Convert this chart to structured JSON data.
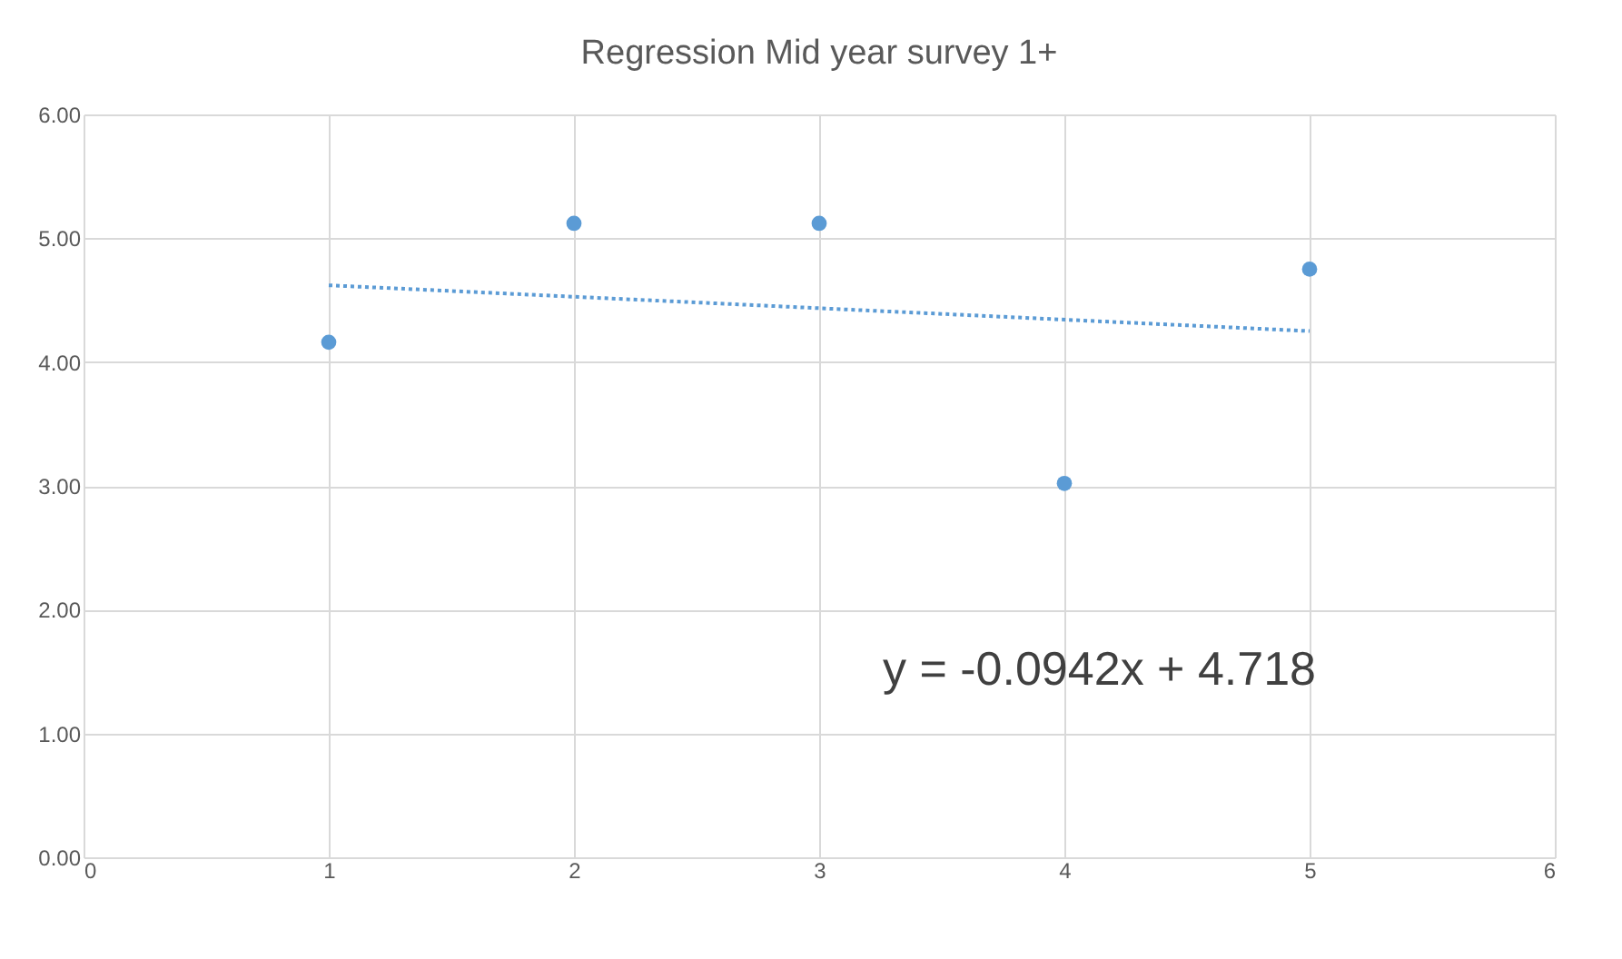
{
  "chart_data": {
    "type": "scatter",
    "title": "Regression Mid year survey 1+",
    "x": [
      1,
      2,
      3,
      4,
      5
    ],
    "series": [
      {
        "color": "#5b9bd5",
        "marker": "circle",
        "values": [
          4.16,
          5.12,
          5.12,
          3.02,
          4.75
        ]
      },
      {
        "type": "line",
        "color": "#5b9bd5",
        "line_style": "dotted",
        "marker": "none",
        "x": [
          1,
          5
        ],
        "values": [
          4.62,
          4.25
        ]
      }
    ],
    "xlim": [
      0,
      6
    ],
    "xticks": [
      0,
      1,
      2,
      3,
      4,
      5,
      6
    ],
    "ylim": [
      0,
      6
    ],
    "yticks": [
      {
        "value": 0,
        "label": "0.00"
      },
      {
        "value": 1,
        "label": "1.00"
      },
      {
        "value": 2,
        "label": "2.00"
      },
      {
        "value": 3,
        "label": "3.00"
      },
      {
        "value": 4,
        "label": "4.00"
      },
      {
        "value": 5,
        "label": "5.00"
      },
      {
        "value": 6,
        "label": "6.00"
      }
    ],
    "grid": true,
    "annotations": [
      "y = -0.0942x + 4.718"
    ]
  }
}
